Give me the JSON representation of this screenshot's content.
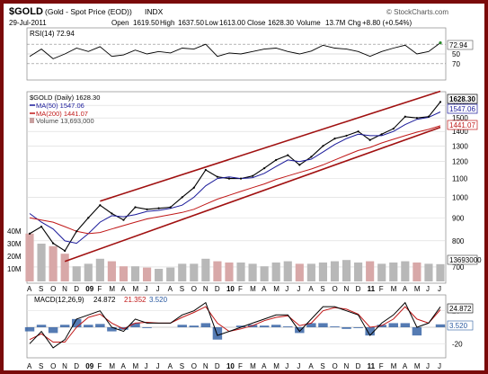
{
  "header": {
    "symbol": "$GOLD",
    "name": "(Gold - Spot Price (EOD))",
    "exchange": "INDX",
    "date": "29-Jul-2011",
    "open_label": "Open",
    "open": "1619.50",
    "high_label": "High",
    "high": "1637.50",
    "low_label": "Low",
    "low": "1613.00",
    "close_label": "Close",
    "close": "1628.30",
    "volume_label": "Volume",
    "volume": "13.7M",
    "chg_label": "Chg",
    "chg": "+8.80 (+0.54%)",
    "watermark": "© StockCharts.com"
  },
  "rsi": {
    "label": "RSI(14) 72.94",
    "value_tag": "72.94",
    "ticks": [
      "70",
      "50",
      "30"
    ]
  },
  "price_legend": {
    "title": "$GOLD (Daily) 1628.30",
    "ma50": "MA(50) 1547.06",
    "ma200": "MA(200) 1441.07",
    "volume": "Volume 13,693,000"
  },
  "price_tags": {
    "close": "1628.30",
    "ma50": "1547.06",
    "ma200": "1441.07",
    "volume": "13693000"
  },
  "volume_axis_labels": [
    "40M",
    "30M",
    "20M",
    "10M"
  ],
  "macd": {
    "label_prefix": "MACD(12,26,9)",
    "macd": "24.872",
    "signal": "21.352",
    "hist": "3.520",
    "tag_macd": "24.872",
    "tag_hist": "3.520",
    "ticks": [
      "20",
      "-20"
    ]
  },
  "x_axis": {
    "labels": [
      "A",
      "S",
      "O",
      "N",
      "D",
      "09",
      "F",
      "M",
      "A",
      "M",
      "J",
      "J",
      "A",
      "S",
      "O",
      "N",
      "D",
      "10",
      "F",
      "M",
      "A",
      "M",
      "J",
      "J",
      "A",
      "S",
      "O",
      "N",
      "D",
      "11",
      "F",
      "M",
      "A",
      "M",
      "J",
      "J"
    ],
    "year_labels": [
      "09",
      "10",
      "11"
    ]
  },
  "colors": {
    "border": "#7a0a0a",
    "price": "#000000",
    "ma50": "#1a1a9a",
    "ma200": "#c01818",
    "volume": "#d8a8a8",
    "volume_up": "#b8b8b8",
    "trend": "#a01010",
    "macd": "#000000",
    "signal": "#c01818",
    "hist": "#2a5aa0",
    "rsi_fill": "#2a8a2a"
  },
  "chart_data": {
    "type": "line",
    "title": "$GOLD (Daily) 1628.30",
    "ylabel": "",
    "y_log": true,
    "ylim": [
      650,
      1700
    ],
    "y_ticks": [
      700,
      800,
      900,
      1000,
      1100,
      1200,
      1300,
      1400,
      1500,
      1600
    ],
    "grid": true,
    "legend_position": "top-left",
    "x": [
      "2008-08",
      "2008-09",
      "2008-10",
      "2008-11",
      "2008-12",
      "2009-01",
      "2009-02",
      "2009-03",
      "2009-04",
      "2009-05",
      "2009-06",
      "2009-07",
      "2009-08",
      "2009-09",
      "2009-10",
      "2009-11",
      "2009-12",
      "2010-01",
      "2010-02",
      "2010-03",
      "2010-04",
      "2010-05",
      "2010-06",
      "2010-07",
      "2010-08",
      "2010-09",
      "2010-10",
      "2010-11",
      "2010-12",
      "2011-01",
      "2011-02",
      "2011-03",
      "2011-04",
      "2011-05",
      "2011-06",
      "2011-07"
    ],
    "series": [
      {
        "name": "$GOLD",
        "values": [
          830,
          860,
          790,
          760,
          840,
          900,
          960,
          920,
          890,
          950,
          940,
          945,
          950,
          1000,
          1050,
          1150,
          1110,
          1100,
          1100,
          1115,
          1160,
          1210,
          1240,
          1180,
          1230,
          1300,
          1350,
          1370,
          1400,
          1340,
          1380,
          1420,
          1510,
          1500,
          1510,
          1628
        ]
      },
      {
        "name": "MA(50)",
        "values": [
          920,
          880,
          850,
          800,
          790,
          830,
          880,
          910,
          905,
          915,
          930,
          935,
          945,
          960,
          1000,
          1060,
          1100,
          1110,
          1100,
          1105,
          1130,
          1170,
          1210,
          1200,
          1215,
          1260,
          1310,
          1350,
          1380,
          1370,
          1370,
          1400,
          1450,
          1490,
          1505,
          1547
        ]
      },
      {
        "name": "MA(200)",
        "values": [
          900,
          890,
          880,
          860,
          840,
          830,
          835,
          850,
          865,
          880,
          895,
          905,
          915,
          925,
          940,
          965,
          990,
          1010,
          1030,
          1050,
          1070,
          1095,
          1115,
          1135,
          1155,
          1180,
          1210,
          1240,
          1270,
          1290,
          1320,
          1345,
          1370,
          1395,
          1415,
          1441
        ]
      }
    ],
    "trend_channel": {
      "upper": {
        "x": [
          "2009-02",
          "2011-07"
        ],
        "y": [
          980,
          1720
        ]
      },
      "lower": {
        "x": [
          "2008-11",
          "2011-07"
        ],
        "y": [
          720,
          1430
        ]
      }
    },
    "volume_millions": [
      38,
      30,
      28,
      22,
      12,
      14,
      18,
      16,
      12,
      12,
      11,
      10,
      11,
      14,
      14,
      18,
      16,
      15,
      15,
      14,
      12,
      15,
      16,
      14,
      14,
      15,
      16,
      17,
      15,
      16,
      14,
      15,
      16,
      15,
      14,
      13.7
    ],
    "volume_ylim": [
      0,
      50
    ],
    "rsi": {
      "name": "RSI(14)",
      "values": [
        45,
        60,
        40,
        50,
        62,
        55,
        65,
        45,
        48,
        58,
        50,
        55,
        52,
        62,
        60,
        70,
        45,
        52,
        50,
        55,
        60,
        62,
        55,
        50,
        56,
        68,
        62,
        60,
        55,
        45,
        55,
        62,
        68,
        50,
        55,
        72.94
      ],
      "ylim": [
        0,
        100
      ],
      "levels": [
        30,
        50,
        70
      ]
    },
    "macd": {
      "macd": [
        -20,
        -5,
        -25,
        -15,
        10,
        15,
        20,
        0,
        -5,
        10,
        5,
        5,
        5,
        15,
        20,
        30,
        -10,
        -5,
        0,
        5,
        10,
        15,
        15,
        -5,
        10,
        25,
        25,
        20,
        15,
        -10,
        5,
        15,
        30,
        0,
        5,
        24.872
      ],
      "signal": [
        -15,
        -8,
        -18,
        -18,
        0,
        12,
        16,
        5,
        -2,
        5,
        6,
        5,
        5,
        12,
        18,
        25,
        5,
        -5,
        -2,
        2,
        8,
        12,
        14,
        2,
        5,
        20,
        24,
        22,
        16,
        0,
        2,
        10,
        25,
        10,
        5,
        21.352
      ],
      "hist": [
        -5,
        3,
        -7,
        3,
        10,
        3,
        4,
        -5,
        -3,
        5,
        -1,
        0,
        0,
        3,
        2,
        5,
        -15,
        0,
        2,
        3,
        2,
        3,
        1,
        -7,
        5,
        5,
        1,
        -2,
        -1,
        -10,
        3,
        5,
        5,
        -10,
        0,
        3.52
      ],
      "ylim": [
        -35,
        35
      ],
      "ticks": [
        20,
        -20
      ]
    }
  }
}
